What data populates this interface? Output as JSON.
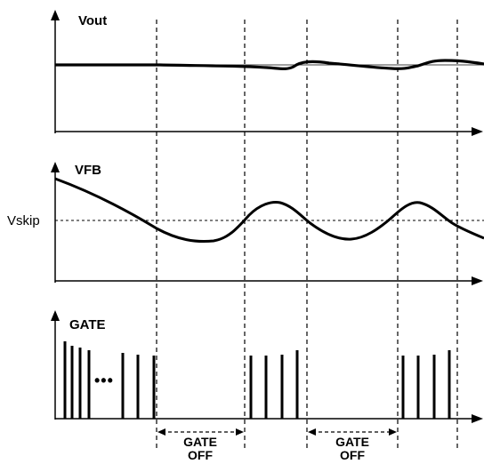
{
  "diagram": {
    "panels": [
      {
        "id": "vout",
        "label": "Vout"
      },
      {
        "id": "vfb",
        "label": "VFB",
        "threshold_label": "Vskip"
      },
      {
        "id": "gate",
        "label": "GATE",
        "ellipsis": "•••"
      }
    ],
    "gate_off_annotations": [
      {
        "line1": "GATE",
        "line2": "OFF"
      },
      {
        "line1": "GATE",
        "line2": "OFF"
      }
    ],
    "colors": {
      "waveform": "#000000",
      "axis": "#000000",
      "dashed": "#000000",
      "background": "#ffffff"
    }
  }
}
